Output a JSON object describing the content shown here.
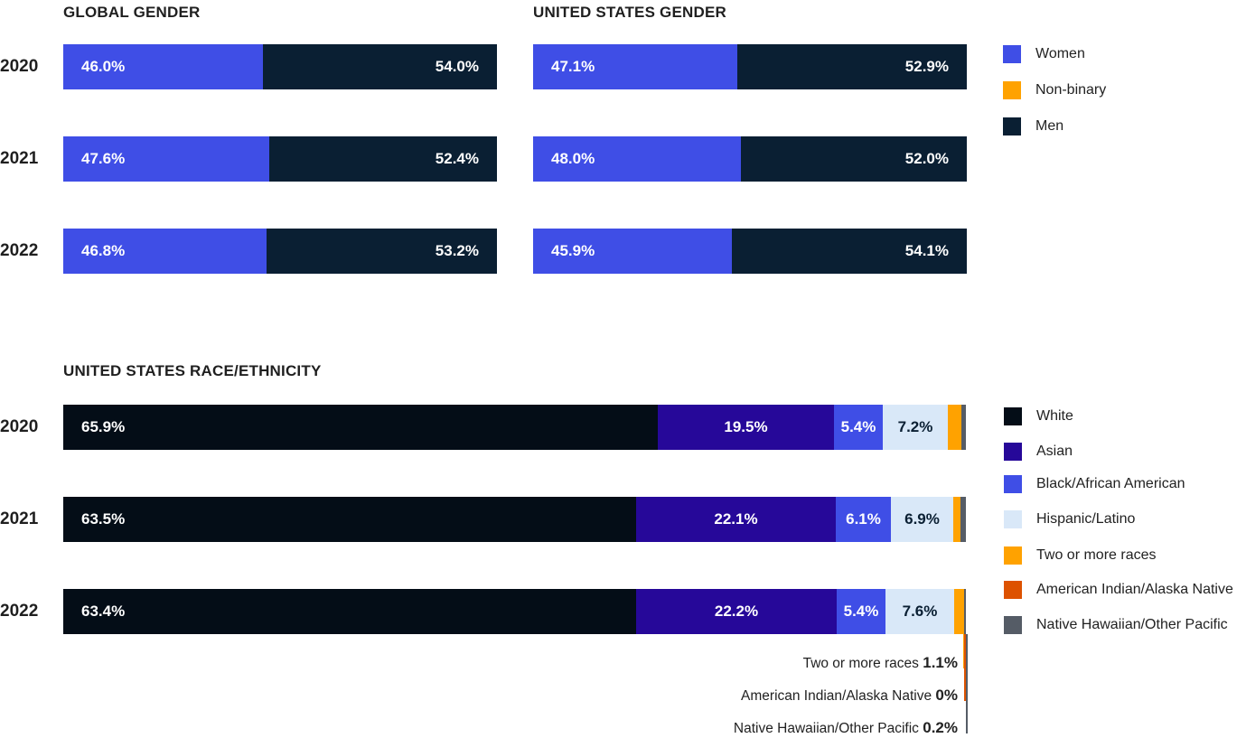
{
  "colors": {
    "women": "#3f4ee6",
    "nonbinary": "#ffa200",
    "men": "#0a1f33",
    "white": "#040d17",
    "asian": "#260899",
    "black": "#3f4ee6",
    "hispanic": "#d9e8f8",
    "two_or_more": "#ffa200",
    "american_indian": "#dd5200",
    "native_hawaiian": "#555c66",
    "label_light": "#ffffff",
    "label_dark": "#0a1f33",
    "label_orange": "#ffa200"
  },
  "chart_data": [
    {
      "type": "bar",
      "stacked": "horizontal-100",
      "title": "GLOBAL GENDER",
      "categories": [
        "2020",
        "2021",
        "2022"
      ],
      "series": [
        {
          "name": "Women",
          "values": [
            46.0,
            47.6,
            46.8
          ],
          "labels": [
            "46.0%",
            "47.6%",
            "46.8%"
          ]
        },
        {
          "name": "Non-binary",
          "values": [
            0,
            0,
            0
          ],
          "labels": [
            "0%",
            "0%",
            "0%"
          ]
        },
        {
          "name": "Men",
          "values": [
            54.0,
            52.4,
            53.2
          ],
          "labels": [
            "54.0%",
            "52.4%",
            "53.2%"
          ]
        }
      ]
    },
    {
      "type": "bar",
      "stacked": "horizontal-100",
      "title": "UNITED STATES GENDER",
      "categories": [
        "2020",
        "2021",
        "2022"
      ],
      "series": [
        {
          "name": "Women",
          "values": [
            47.1,
            48.0,
            45.9
          ],
          "labels": [
            "47.1%",
            "48.0%",
            "45.9%"
          ]
        },
        {
          "name": "Non-binary",
          "values": [
            0,
            0,
            0
          ],
          "labels": [
            "0%",
            "0%",
            "0%"
          ]
        },
        {
          "name": "Men",
          "values": [
            52.9,
            52.0,
            54.1
          ],
          "labels": [
            "52.9%",
            "52.0%",
            "54.1%"
          ]
        }
      ]
    },
    {
      "type": "bar",
      "stacked": "horizontal-100",
      "title": "UNITED STATES RACE/ETHNICITY",
      "categories": [
        "2020",
        "2021",
        "2022"
      ],
      "series": [
        {
          "name": "White",
          "values": [
            65.9,
            63.5,
            63.4
          ],
          "labels": [
            "65.9%",
            "63.5%",
            "63.4%"
          ]
        },
        {
          "name": "Asian",
          "values": [
            19.5,
            22.1,
            22.2
          ],
          "labels": [
            "19.5%",
            "22.1%",
            "22.2%"
          ]
        },
        {
          "name": "Black/African American",
          "values": [
            5.4,
            6.1,
            5.4
          ],
          "labels": [
            "5.4%",
            "6.1%",
            "5.4%"
          ]
        },
        {
          "name": "Hispanic/Latino",
          "values": [
            7.2,
            6.9,
            7.6
          ],
          "labels": [
            "7.2%",
            "6.9%",
            "7.6%"
          ]
        },
        {
          "name": "Two or more races",
          "values": [
            1.5,
            0.8,
            1.1
          ]
        },
        {
          "name": "American Indian/Alaska Native",
          "values": [
            0,
            0,
            0
          ]
        },
        {
          "name": "Native Hawaiian/Other Pacific",
          "values": [
            0.5,
            0.6,
            0.2
          ]
        }
      ],
      "annotations": [
        {
          "label": "Two or more races",
          "value": "1.1%"
        },
        {
          "label": "American Indian/Alaska Native",
          "value": "0%"
        },
        {
          "label": "Native Hawaiian/Other Pacific",
          "value": "0.2%"
        }
      ]
    }
  ],
  "legend_gender": [
    "Women",
    "Non-binary",
    "Men"
  ],
  "legend_race": [
    "White",
    "Asian",
    "Black/African American",
    "Hispanic/Latino",
    "Two or more races",
    "American Indian/Alaska Native",
    "Native Hawaiian/Other Pacific"
  ]
}
